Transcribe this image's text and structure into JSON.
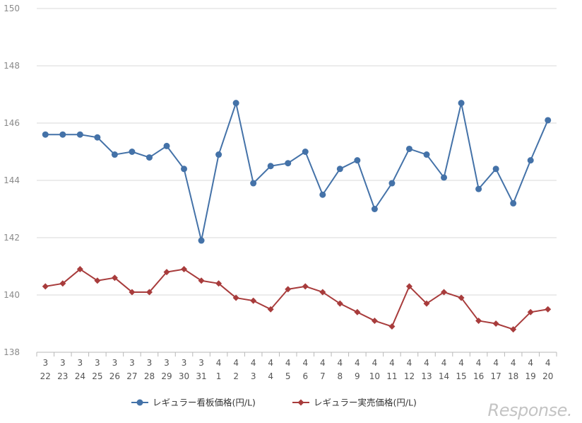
{
  "chart_data": {
    "type": "line",
    "title": "",
    "xlabel": "",
    "ylabel": "",
    "ylim": [
      138,
      150
    ],
    "yticks": [
      138,
      140,
      142,
      144,
      146,
      148,
      150
    ],
    "grid": "horizontal",
    "legend": "bottom",
    "categories": [
      {
        "month": "3",
        "day": "22"
      },
      {
        "month": "3",
        "day": "23"
      },
      {
        "month": "3",
        "day": "24"
      },
      {
        "month": "3",
        "day": "25"
      },
      {
        "month": "3",
        "day": "26"
      },
      {
        "month": "3",
        "day": "27"
      },
      {
        "month": "3",
        "day": "28"
      },
      {
        "month": "3",
        "day": "29"
      },
      {
        "month": "3",
        "day": "30"
      },
      {
        "month": "3",
        "day": "31"
      },
      {
        "month": "4",
        "day": "1"
      },
      {
        "month": "4",
        "day": "2"
      },
      {
        "month": "4",
        "day": "3"
      },
      {
        "month": "4",
        "day": "4"
      },
      {
        "month": "4",
        "day": "5"
      },
      {
        "month": "4",
        "day": "6"
      },
      {
        "month": "4",
        "day": "7"
      },
      {
        "month": "4",
        "day": "8"
      },
      {
        "month": "4",
        "day": "9"
      },
      {
        "month": "4",
        "day": "10"
      },
      {
        "month": "4",
        "day": "11"
      },
      {
        "month": "4",
        "day": "12"
      },
      {
        "month": "4",
        "day": "13"
      },
      {
        "month": "4",
        "day": "14"
      },
      {
        "month": "4",
        "day": "15"
      },
      {
        "month": "4",
        "day": "16"
      },
      {
        "month": "4",
        "day": "17"
      },
      {
        "month": "4",
        "day": "18"
      },
      {
        "month": "4",
        "day": "19"
      },
      {
        "month": "4",
        "day": "20"
      }
    ],
    "series": [
      {
        "name": "レギュラー看板価格(円/L)",
        "color": "#4472a8",
        "marker": "circle",
        "values": [
          145.6,
          145.6,
          145.6,
          145.5,
          144.9,
          145.0,
          144.8,
          145.2,
          144.4,
          141.9,
          144.9,
          146.7,
          143.9,
          144.5,
          144.6,
          145.0,
          143.5,
          144.4,
          144.7,
          143.0,
          143.9,
          145.1,
          144.9,
          144.1,
          146.7,
          143.7,
          144.4,
          143.2,
          144.7,
          146.1
        ]
      },
      {
        "name": "レギュラー実売価格(円/L)",
        "color": "#a83c3c",
        "marker": "diamond",
        "values": [
          140.3,
          140.4,
          140.9,
          140.5,
          140.6,
          140.1,
          140.1,
          140.8,
          140.9,
          140.5,
          140.4,
          139.9,
          139.8,
          139.5,
          140.2,
          140.3,
          140.1,
          139.7,
          139.4,
          139.1,
          138.9,
          140.3,
          139.7,
          140.1,
          139.9,
          139.1,
          139.0,
          138.8,
          139.4,
          139.5
        ]
      }
    ]
  },
  "watermark": "Response."
}
